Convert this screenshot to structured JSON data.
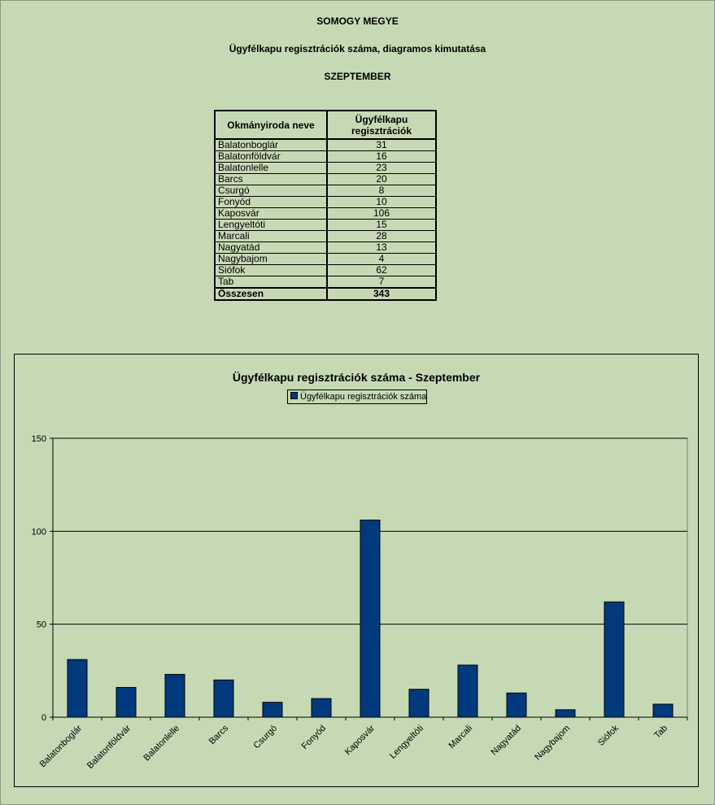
{
  "header": {
    "county": "SOMOGY MEGYE",
    "subtitle": "Ügyfélkapu regisztrációk száma, diagramos kimutatása",
    "month": "SZEPTEMBER"
  },
  "table": {
    "col1_header": "Okmányiroda neve",
    "col2_header": "Ügyfélkapu regisztrációk",
    "rows": [
      {
        "name": "Balatonboglár",
        "value": "31"
      },
      {
        "name": "Balatonföldvár",
        "value": "16"
      },
      {
        "name": "Balatonlelle",
        "value": "23"
      },
      {
        "name": "Barcs",
        "value": "20"
      },
      {
        "name": "Csurgó",
        "value": "8"
      },
      {
        "name": "Fonyód",
        "value": "10"
      },
      {
        "name": "Kaposvár",
        "value": "106"
      },
      {
        "name": "Lengyeltóti",
        "value": "15"
      },
      {
        "name": "Marcali",
        "value": "28"
      },
      {
        "name": "Nagyatád",
        "value": "13"
      },
      {
        "name": "Nagybajom",
        "value": "4"
      },
      {
        "name": "Siófok",
        "value": "62"
      },
      {
        "name": "Tab",
        "value": "7"
      }
    ],
    "total_label": "Összesen",
    "total_value": "343"
  },
  "chart_data": {
    "type": "bar",
    "title": "Ügyfélkapu regisztrációk száma - Szeptember",
    "legend_position": "top-center",
    "categories": [
      "Balatonboglár",
      "Balatonföldvár",
      "Balatonlelle",
      "Barcs",
      "Csurgó",
      "Fonyód",
      "Kaposvár",
      "Lengyeltóti",
      "Marcali",
      "Nagyatád",
      "Nagybajom",
      "Siófok",
      "Tab"
    ],
    "series": [
      {
        "name": "Ügyfélkapu regisztrációk száma",
        "values": [
          31,
          16,
          23,
          20,
          8,
          10,
          106,
          15,
          28,
          13,
          4,
          62,
          7
        ],
        "color": "#003a7d"
      }
    ],
    "ylim": [
      0,
      150
    ],
    "yticks": [
      0,
      50,
      100,
      150
    ],
    "grid": true
  }
}
